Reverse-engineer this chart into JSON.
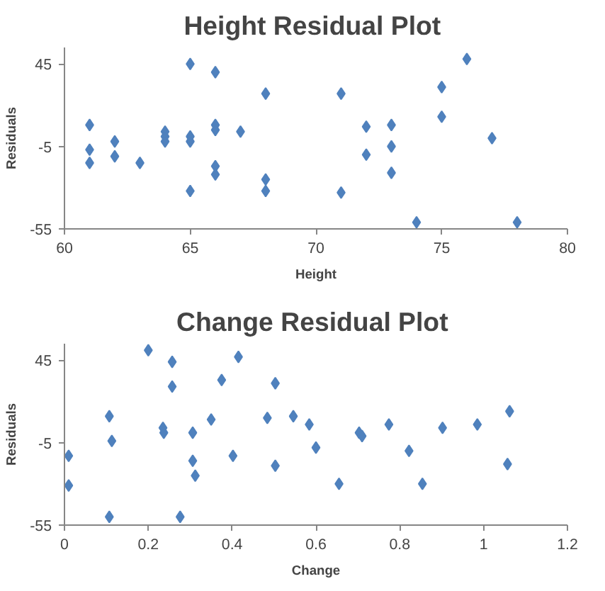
{
  "chart_data": [
    {
      "type": "scatter",
      "title": "Height  Residual Plot",
      "xlabel": "Height",
      "ylabel": "Residuals",
      "color": "#4f81bd",
      "marker": "diamond",
      "x": [
        61,
        61,
        61,
        62,
        62,
        63,
        64,
        64,
        64,
        65,
        65,
        65,
        65,
        66,
        66,
        66,
        66,
        66,
        67,
        68,
        68,
        68,
        71,
        71,
        72,
        72,
        73,
        73,
        73,
        74,
        75,
        75,
        76,
        77,
        78
      ],
      "values": [
        8,
        -7,
        -15,
        -2,
        -11,
        -15,
        4,
        1,
        -2,
        45,
        1,
        -2,
        -32,
        40,
        8,
        5,
        -17,
        -22,
        4,
        27,
        -25,
        -32,
        27,
        -33,
        7,
        -10,
        8,
        -5,
        -21,
        -51,
        31,
        13,
        48,
        0,
        -51
      ],
      "xlim": [
        60,
        80
      ],
      "ylim": [
        -55,
        55
      ],
      "xticks": [
        60,
        65,
        70,
        75,
        80
      ],
      "yticks": [
        -55,
        -5,
        45
      ]
    },
    {
      "type": "scatter",
      "title": "Change  Residual Plot",
      "xlabel": "Change",
      "ylabel": "Residuals",
      "color": "#4f81bd",
      "marker": "diamond",
      "x": [
        0.01,
        0.01,
        0.107,
        0.113,
        0.107,
        0.2,
        0.235,
        0.237,
        0.257,
        0.257,
        0.276,
        0.306,
        0.306,
        0.312,
        0.35,
        0.375,
        0.402,
        0.415,
        0.484,
        0.503,
        0.503,
        0.546,
        0.584,
        0.6,
        0.655,
        0.703,
        0.71,
        0.774,
        0.822,
        0.854,
        0.902,
        0.985,
        1.057,
        1.062
      ],
      "values": [
        -13,
        -31,
        11,
        -4,
        -50,
        51,
        4,
        1,
        44,
        29,
        -50,
        1,
        -16,
        -25,
        9,
        33,
        -13,
        47,
        10,
        31,
        -19,
        11,
        6,
        -8,
        -30,
        1,
        -1,
        6,
        -10,
        -30,
        4,
        6,
        -18,
        14
      ],
      "xlim": [
        0,
        1.2
      ],
      "ylim": [
        -55,
        55
      ],
      "xticks": [
        0,
        0.2,
        0.4,
        0.6,
        0.8,
        1,
        1.2
      ],
      "yticks": [
        -55,
        -5,
        45
      ]
    }
  ]
}
